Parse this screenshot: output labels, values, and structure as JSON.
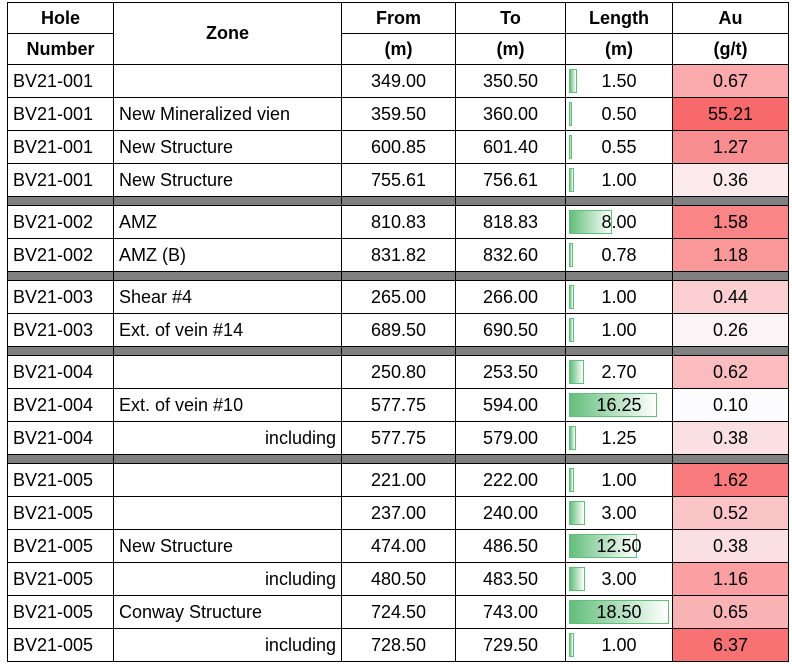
{
  "table": {
    "header": [
      [
        "Hole",
        "Zone",
        "From",
        "To",
        "Length",
        "Au"
      ],
      [
        "Number",
        "(m)",
        "(m)",
        "(m)",
        "(g/t)"
      ]
    ],
    "groups": [
      [
        [
          "BV21-001",
          null,
          "349.00",
          "350.50",
          "1.50",
          "0.67"
        ],
        [
          "BV21-001",
          "New Mineralized vien",
          "359.50",
          "360.00",
          "0.50",
          "55.21"
        ],
        [
          "BV21-001",
          "New Structure",
          "600.85",
          "601.40",
          "0.55",
          "1.27"
        ],
        [
          "BV21-001",
          "New Structure",
          "755.61",
          "756.61",
          "1.00",
          "0.36"
        ]
      ],
      [
        [
          "BV21-002",
          "AMZ",
          "810.83",
          "818.83",
          "8.00",
          "1.58"
        ],
        [
          "BV21-002",
          "AMZ (B)",
          "831.82",
          "832.60",
          "0.78",
          "1.18"
        ]
      ],
      [
        [
          "BV21-003",
          "Shear #4",
          "265.00",
          "266.00",
          "1.00",
          "0.44"
        ],
        [
          "BV21-003",
          "Ext. of vein #14",
          "689.50",
          "690.50",
          "1.00",
          "0.26"
        ]
      ],
      [
        [
          "BV21-004",
          null,
          "250.80",
          "253.50",
          "2.70",
          "0.62"
        ],
        [
          "BV21-004",
          "Ext. of vein #10",
          "577.75",
          "594.00",
          "16.25",
          "0.10"
        ],
        [
          "BV21-004",
          "including",
          "577.75",
          "579.00",
          "1.25",
          "0.38"
        ]
      ],
      [
        [
          "BV21-005",
          null,
          "221.00",
          "222.00",
          "1.00",
          "1.62"
        ],
        [
          "BV21-005",
          null,
          "237.00",
          "240.00",
          "3.00",
          "0.52"
        ],
        [
          "BV21-005",
          "New Structure",
          "474.00",
          "486.50",
          "12.50",
          "0.38"
        ],
        [
          "BV21-005",
          "including",
          "480.50",
          "483.50",
          "3.00",
          "1.16"
        ],
        [
          "BV21-005",
          "Conway Structure",
          "724.50",
          "743.00",
          "18.50",
          "0.65"
        ],
        [
          "BV21-005",
          "including",
          "728.50",
          "729.50",
          "1.00",
          "6.37"
        ]
      ]
    ]
  }
}
